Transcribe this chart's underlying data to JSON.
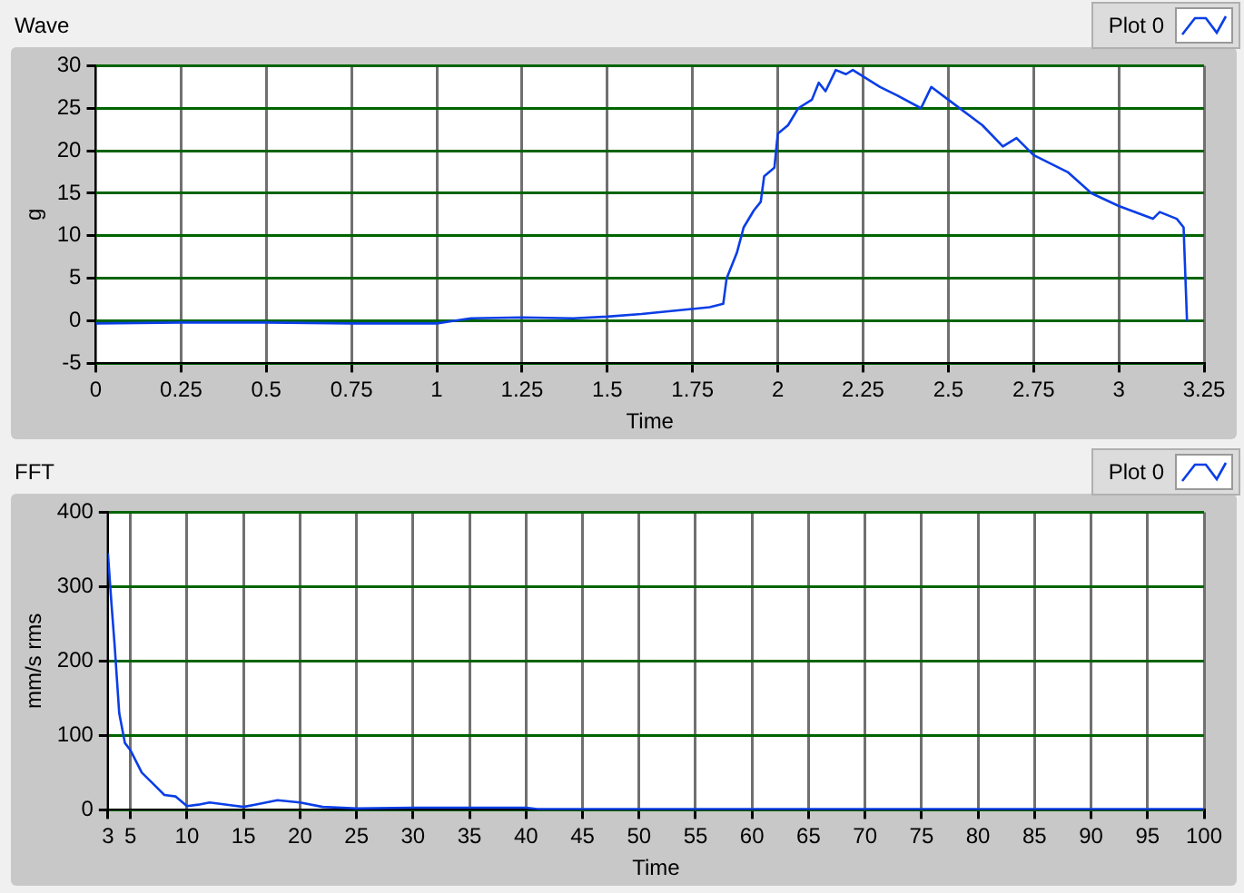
{
  "chart_data": [
    {
      "type": "line",
      "title": "Wave",
      "xlabel": "Time",
      "ylabel": "g",
      "legend": "top right",
      "grid": true,
      "xlim": [
        0,
        3.25
      ],
      "xticks": [
        0,
        0.25,
        0.5,
        0.75,
        1,
        1.25,
        1.5,
        1.75,
        2,
        2.25,
        2.5,
        2.75,
        3,
        3.25
      ],
      "ylim": [
        -5,
        30
      ],
      "yticks": [
        -5,
        0,
        5,
        10,
        15,
        20,
        25,
        30
      ],
      "series": [
        {
          "name": "Plot 0",
          "color": "#0a3ee6",
          "x": [
            0,
            0.25,
            0.5,
            0.75,
            1,
            1.1,
            1.25,
            1.4,
            1.5,
            1.6,
            1.7,
            1.8,
            1.84,
            1.85,
            1.88,
            1.9,
            1.93,
            1.95,
            1.96,
            1.99,
            2,
            2.03,
            2.06,
            2.1,
            2.12,
            2.14,
            2.17,
            2.2,
            2.22,
            2.3,
            2.35,
            2.42,
            2.45,
            2.5,
            2.6,
            2.66,
            2.7,
            2.75,
            2.85,
            2.92,
            3,
            3.1,
            3.12,
            3.17,
            3.19,
            3.2
          ],
          "values": [
            -0.3,
            -0.2,
            -0.2,
            -0.3,
            -0.3,
            0.3,
            0.4,
            0.3,
            0.5,
            0.8,
            1.2,
            1.6,
            2,
            5,
            8,
            11,
            13,
            14,
            17,
            18,
            22,
            23,
            25,
            26,
            28,
            27,
            29.5,
            29,
            29.5,
            27.5,
            26.5,
            25,
            27.5,
            26,
            23,
            20.5,
            21.5,
            19.5,
            17.5,
            15,
            13.5,
            12,
            12.8,
            12,
            11,
            0
          ]
        }
      ]
    },
    {
      "type": "line",
      "title": "FFT",
      "xlabel": "Time",
      "ylabel": "mm/s rms",
      "legend": "top right",
      "grid": true,
      "xlim": [
        3,
        100
      ],
      "xticks": [
        3,
        5,
        10,
        15,
        20,
        25,
        30,
        35,
        40,
        45,
        50,
        55,
        60,
        65,
        70,
        75,
        80,
        85,
        90,
        95,
        100
      ],
      "ylim": [
        0,
        400
      ],
      "yticks": [
        0,
        100,
        200,
        300,
        400
      ],
      "series": [
        {
          "name": "Plot 0",
          "color": "#0a3ee6",
          "x": [
            3,
            3.3,
            3.6,
            4,
            4.5,
            5,
            6,
            7,
            8,
            9,
            10,
            11,
            12,
            14,
            15,
            16,
            18,
            20,
            22,
            25,
            30,
            35,
            40,
            41,
            100
          ],
          "values": [
            345,
            280,
            220,
            130,
            90,
            80,
            50,
            35,
            20,
            18,
            5,
            7,
            10,
            6,
            4,
            7,
            13,
            10,
            4,
            2,
            3,
            3,
            3,
            1,
            1
          ]
        }
      ]
    }
  ]
}
